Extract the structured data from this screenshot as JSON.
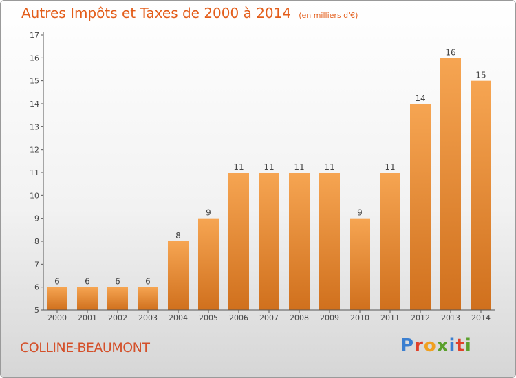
{
  "colors": {
    "bar_light": "#f6a552",
    "bar_dark": "#d0701d",
    "accent": "#e35d1a"
  },
  "chart_data": {
    "type": "bar",
    "title": "Autres Impôts et Taxes de 2000 à 2014",
    "subtitle": "(en milliers d'€)",
    "categories": [
      "2000",
      "2001",
      "2002",
      "2003",
      "2004",
      "2005",
      "2006",
      "2007",
      "2008",
      "2009",
      "2010",
      "2011",
      "2012",
      "2013",
      "2014"
    ],
    "values": [
      6,
      6,
      6,
      6,
      8,
      9,
      11,
      11,
      11,
      11,
      9,
      11,
      14,
      16,
      15
    ],
    "ylim": [
      5,
      17
    ],
    "yticks": [
      5,
      6,
      7,
      8,
      9,
      10,
      11,
      12,
      13,
      14,
      15,
      16,
      17
    ],
    "grid": false,
    "legend": "none"
  },
  "footer": {
    "commune": "COLLINE-BEAUMONT",
    "logo_text": "Proxiti"
  }
}
